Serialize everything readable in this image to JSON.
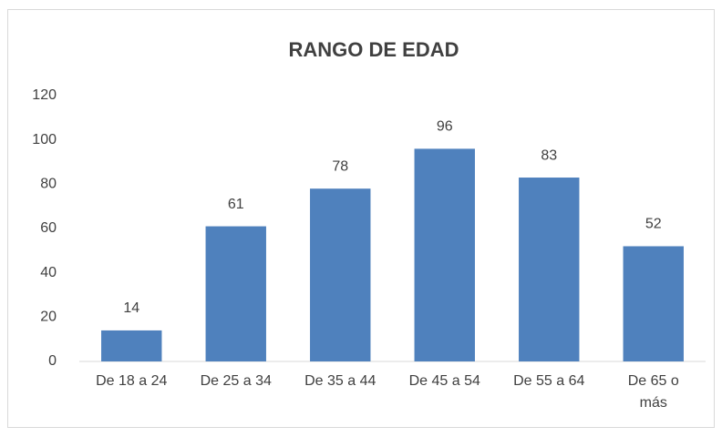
{
  "chart_data": {
    "type": "bar",
    "title": "RANGO DE EDAD",
    "categories": [
      "De 18 a 24",
      "De 25 a 34",
      "De 35 a 44",
      "De 45 a 54",
      "De 55 a 64",
      "De 65 o más"
    ],
    "values": [
      14,
      61,
      78,
      96,
      83,
      52
    ],
    "color": "#4f81bd",
    "ylim": [
      0,
      120
    ],
    "yticks": [
      0,
      20,
      40,
      60,
      80,
      100,
      120
    ],
    "grid": false
  }
}
